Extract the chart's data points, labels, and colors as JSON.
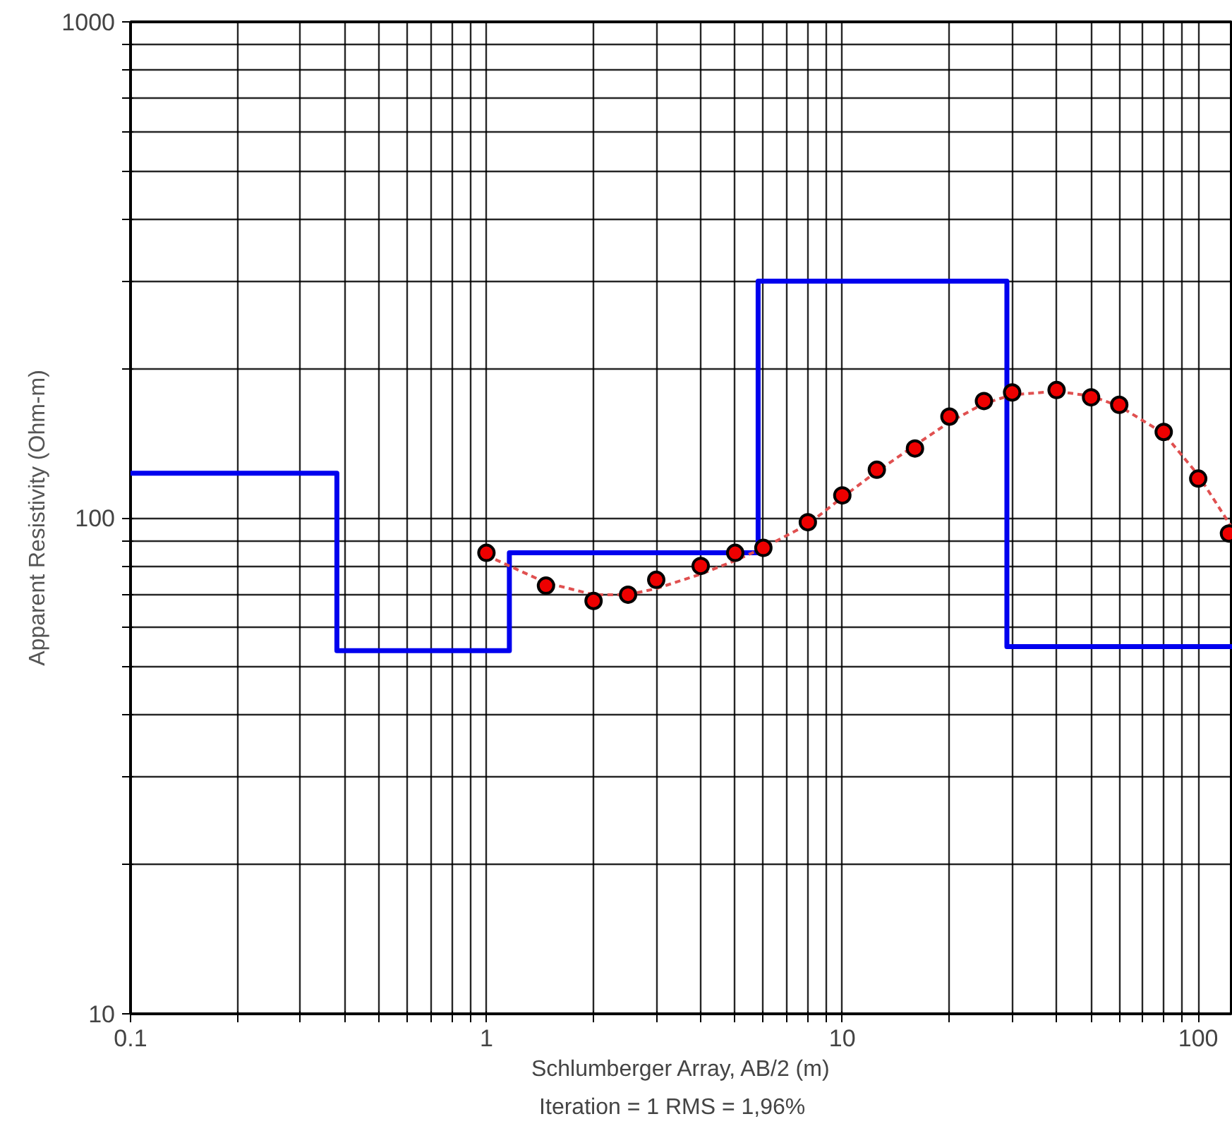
{
  "chart_data": {
    "type": "scatter",
    "xlabel": "Schlumberger Array, AB/2 (m)",
    "ylabel": "Apparent Resistivity (Ohm-m)",
    "annotations": [
      "Iteration = 1    RMS = 1,96%"
    ],
    "log": "xy",
    "grid": true,
    "xlim": [
      0.1,
      125
    ],
    "ylim": [
      10,
      1000
    ],
    "xticks": [
      0.1,
      {
        "value": 0.2,
        "label": null
      },
      {
        "value": 0.3,
        "label": null
      },
      {
        "value": 0.4,
        "label": null
      },
      {
        "value": 0.5,
        "label": null
      },
      {
        "value": 0.6,
        "label": null
      },
      {
        "value": 0.7,
        "label": null
      },
      {
        "value": 0.8,
        "label": null
      },
      {
        "value": 0.9,
        "label": null
      },
      1,
      {
        "value": 2,
        "label": null
      },
      {
        "value": 3,
        "label": null
      },
      {
        "value": 4,
        "label": null
      },
      {
        "value": 5,
        "label": null
      },
      {
        "value": 6,
        "label": null
      },
      {
        "value": 7,
        "label": null
      },
      {
        "value": 8,
        "label": null
      },
      {
        "value": 9,
        "label": null
      },
      10,
      {
        "value": 20,
        "label": null
      },
      {
        "value": 30,
        "label": null
      },
      {
        "value": 40,
        "label": null
      },
      {
        "value": 50,
        "label": null
      },
      {
        "value": 60,
        "label": null
      },
      {
        "value": 70,
        "label": null
      },
      {
        "value": 80,
        "label": null
      },
      {
        "value": 90,
        "label": null
      },
      100
    ],
    "yticks": [
      10,
      {
        "value": 20,
        "label": null
      },
      {
        "value": 30,
        "label": null
      },
      {
        "value": 40,
        "label": null
      },
      {
        "value": 50,
        "label": null
      },
      {
        "value": 60,
        "label": null
      },
      {
        "value": 70,
        "label": null
      },
      {
        "value": 80,
        "label": null
      },
      {
        "value": 90,
        "label": null
      },
      100,
      {
        "value": 200,
        "label": null
      },
      {
        "value": 300,
        "label": null
      },
      {
        "value": 400,
        "label": null
      },
      {
        "value": 500,
        "label": null
      },
      {
        "value": 600,
        "label": null
      },
      {
        "value": 700,
        "label": null
      },
      {
        "value": 800,
        "label": null
      },
      {
        "value": 900,
        "label": null
      },
      1000
    ],
    "series": [
      {
        "type": "step",
        "color": "#0000ee",
        "x": [
          0.1,
          0.38,
          1.16,
          5.8,
          29,
          125
        ],
        "values": [
          123,
          54,
          85,
          300,
          55,
          55
        ]
      },
      {
        "type": "line",
        "line_style": "dashed",
        "color": "#e05050",
        "x": [
          1,
          1.47,
          2,
          2.5,
          3,
          4,
          5,
          6,
          8,
          10,
          12.5,
          16,
          20,
          25,
          30,
          40,
          50,
          60,
          80,
          100,
          125
        ],
        "values": [
          84,
          74,
          70,
          70,
          72,
          77,
          82,
          87,
          97,
          110,
          124,
          140,
          156,
          170,
          177,
          180,
          176,
          168,
          148,
          122,
          95
        ]
      },
      {
        "marker": "circle",
        "color": "#ee0000",
        "x": [
          1,
          1.47,
          2,
          2.5,
          3,
          4,
          5,
          6,
          8,
          10,
          12.5,
          16,
          20,
          25,
          30,
          40,
          50,
          60,
          80,
          100,
          122
        ],
        "values": [
          85,
          73,
          68,
          70,
          75,
          80,
          85,
          87,
          98,
          111,
          125,
          138,
          160,
          172,
          179,
          181,
          175,
          169,
          149,
          120,
          93
        ]
      }
    ]
  }
}
